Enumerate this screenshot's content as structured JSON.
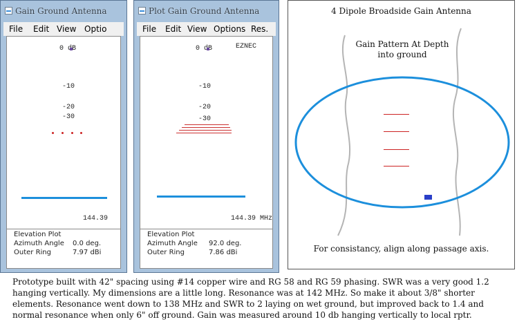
{
  "window1": {
    "title": "Gain Ground Antenna",
    "menu": [
      "File",
      "Edit",
      "View",
      "Optio"
    ],
    "ring_labels": [
      "0 dB",
      "-10",
      "-20",
      "-30"
    ],
    "frequency": "144.39",
    "info": [
      {
        "label": "Elevation Plot",
        "value": ""
      },
      {
        "label": "Azimuth Angle",
        "value": "0.0 deg."
      },
      {
        "label": "Outer Ring",
        "value": "7.97 dBi"
      }
    ]
  },
  "window2": {
    "title": "Plot Gain Ground Antenna",
    "menu": [
      "File",
      "Edit",
      "View",
      "Options",
      "Res."
    ],
    "ring_labels": [
      "0 dB",
      "-10",
      "-20",
      "-30"
    ],
    "watermark": "EZNEC",
    "frequency": "144.39 MHz",
    "info": [
      {
        "label": "Elevation Plot",
        "value": ""
      },
      {
        "label": "Azimuth Angle",
        "value": "92.0 deg."
      },
      {
        "label": "Outer Ring",
        "value": "7.86 dBi"
      }
    ]
  },
  "diagram": {
    "title": "4 Dipole Broadside Gain Antenna",
    "subtitle_line1": "Gain Pattern At Depth",
    "subtitle_line2": "into ground",
    "note": "For consistancy, align along passage axis.",
    "ellipse_color": "#1c8fdc",
    "dipole_color": "#cc2222",
    "marker_color": "#2a3fc8"
  },
  "caption": "Prototype built with 42\" spacing using #14 copper wire and RG 58 and RG 59 phasing.  SWR was a very good 1.2 hanging vertically.   My dimensions are a little long.  Resonance was at 142 MHz.  So make it about 3/8\" shorter elements. Resonance went down to 138 MHz and SWR to 2 laying on wet ground, but improved back to 1.4 and normal resonance when only 6\" off ground.  Gain was measured around 10 db hanging vertically to local rptr."
}
